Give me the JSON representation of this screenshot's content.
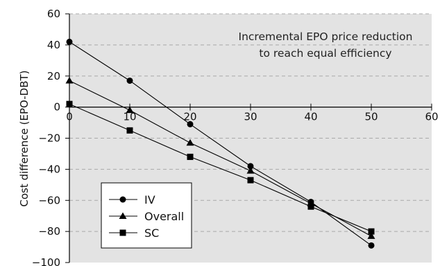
{
  "chart_data": {
    "type": "line",
    "title": "",
    "xlabel": "",
    "ylabel": "Cost difference (EPO-DBT)",
    "xlim": [
      0,
      60
    ],
    "ylim": [
      -100,
      60
    ],
    "x_ticks": [
      0,
      10,
      20,
      30,
      40,
      50,
      60
    ],
    "y_ticks": [
      60,
      40,
      20,
      0,
      -20,
      -40,
      -60,
      -80,
      -100
    ],
    "x_tick_labels": [
      "0",
      "10",
      "20",
      "30",
      "40",
      "50",
      "60"
    ],
    "y_tick_labels": [
      "60",
      "40",
      "20",
      "0",
      "−20",
      "−40",
      "−60",
      "−80",
      "−100"
    ],
    "grid": true,
    "legend_position": "bottom-left",
    "annotation": [
      "Incremental EPO price reduction",
      "to reach equal efficiency"
    ],
    "colors": {
      "plot_background": "#e3e3e3",
      "grid": "#a9a9a9",
      "series": "#000000"
    },
    "series": [
      {
        "name": "IV",
        "marker": "circle",
        "x": [
          0,
          10,
          20,
          30,
          40,
          50
        ],
        "values": [
          42,
          17,
          -11,
          -38,
          -61,
          -89
        ]
      },
      {
        "name": "Overall",
        "marker": "triangle",
        "x": [
          0,
          10,
          20,
          30,
          40,
          50
        ],
        "values": [
          17,
          -2,
          -23,
          -41,
          -62,
          -83
        ]
      },
      {
        "name": "SC",
        "marker": "square",
        "x": [
          0,
          10,
          20,
          30,
          40,
          50
        ],
        "values": [
          2,
          -15,
          -32,
          -47,
          -64,
          -80
        ]
      }
    ]
  }
}
